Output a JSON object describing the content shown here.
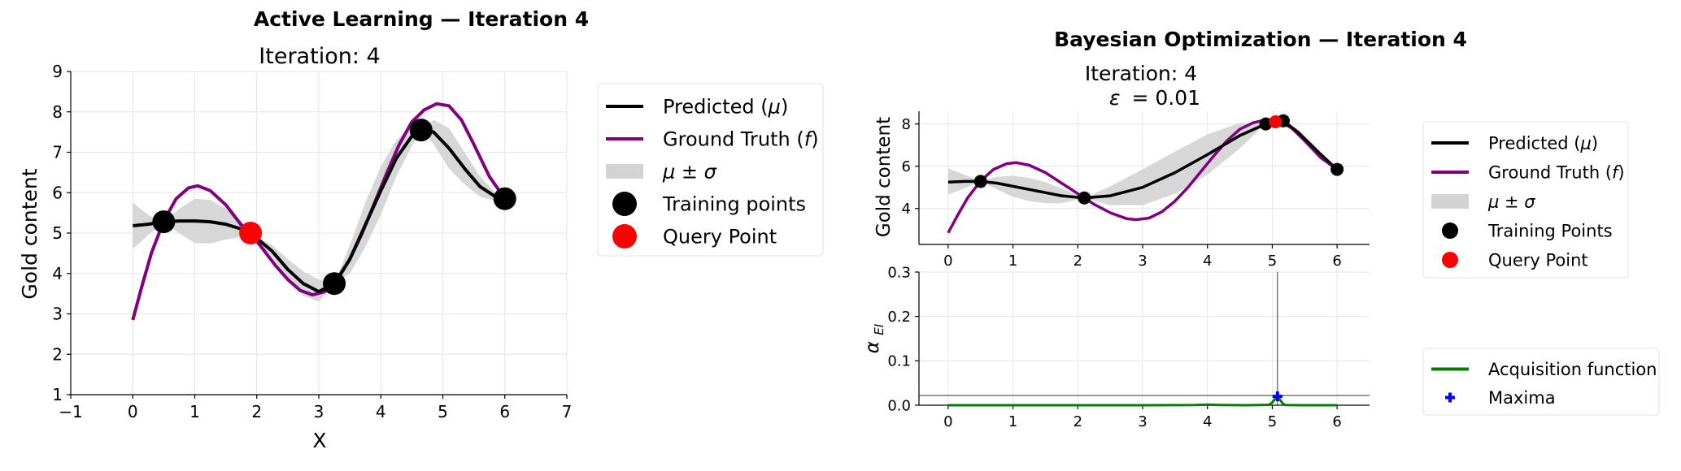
{
  "active_learning": {
    "suptitle": "Active Learning — Iteration 4",
    "suptitle_color": "#9b27b0",
    "title": "Iteration: 4"
  },
  "bayes_opt": {
    "suptitle": "Bayesian Optimization — Iteration 4",
    "suptitle_color": "#4caf50",
    "title_line1": "Iteration: 4",
    "title_line2_symbol": "ε",
    "title_line2_value": "= 0.01"
  },
  "chart_data": [
    {
      "type": "line",
      "title": "Iteration: 4",
      "xlabel": "X",
      "ylabel": "Gold content",
      "xlim": [
        -1,
        7
      ],
      "ylim": [
        1,
        9
      ],
      "xticks": [
        -1,
        0,
        1,
        2,
        3,
        4,
        5,
        6,
        7
      ],
      "yticks": [
        1,
        2,
        3,
        4,
        5,
        6,
        7,
        8,
        9
      ],
      "grid": true,
      "legend_position": "right",
      "legend": [
        {
          "symbol": "line",
          "color": "#000000",
          "text": "Predicted (",
          "math": "μ",
          "tail": ")"
        },
        {
          "symbol": "line",
          "color": "#800080",
          "text": "Ground Truth (",
          "math": "f",
          "tail": ")"
        },
        {
          "symbol": "band",
          "color": "#d3d3d3",
          "text": "",
          "math": "μ ± σ",
          "tail": ""
        },
        {
          "symbol": "dot",
          "color": "#000000",
          "text": "Training points",
          "math": "",
          "tail": ""
        },
        {
          "symbol": "dot",
          "color": "#ff0000",
          "text": "Query Point",
          "math": "",
          "tail": ""
        }
      ],
      "series": [
        {
          "role": "predicted",
          "color": "#000000",
          "x": [
            0,
            0.25,
            0.5,
            0.75,
            1.0,
            1.25,
            1.5,
            1.75,
            1.9,
            2.25,
            2.5,
            2.75,
            3.0,
            3.25,
            3.5,
            3.75,
            4.0,
            4.25,
            4.5,
            4.65,
            4.85,
            5.1,
            5.35,
            5.6,
            5.85,
            6.0
          ],
          "y": [
            5.18,
            5.22,
            5.28,
            5.3,
            5.3,
            5.28,
            5.22,
            5.1,
            5.0,
            4.55,
            4.1,
            3.75,
            3.55,
            3.75,
            4.35,
            5.2,
            6.05,
            6.85,
            7.4,
            7.55,
            7.5,
            7.1,
            6.6,
            6.15,
            5.9,
            5.85
          ]
        },
        {
          "role": "ground_truth",
          "color": "#800080",
          "x": [
            0,
            0.15,
            0.3,
            0.5,
            0.7,
            0.9,
            1.05,
            1.25,
            1.5,
            1.75,
            1.9,
            2.1,
            2.3,
            2.5,
            2.7,
            2.9,
            3.1,
            3.3,
            3.5,
            3.7,
            3.9,
            4.1,
            4.3,
            4.5,
            4.7,
            4.9,
            5.1,
            5.3,
            5.5,
            5.75,
            6.0
          ],
          "y": [
            2.85,
            3.7,
            4.5,
            5.3,
            5.85,
            6.12,
            6.17,
            6.05,
            5.7,
            5.2,
            5.0,
            4.6,
            4.2,
            3.85,
            3.58,
            3.47,
            3.55,
            3.85,
            4.35,
            5.0,
            5.75,
            6.5,
            7.2,
            7.75,
            8.05,
            8.2,
            8.15,
            7.8,
            7.2,
            6.4,
            5.85
          ]
        },
        {
          "role": "uncertainty_band",
          "color": "#d3d3d3",
          "x": [
            0,
            0.25,
            0.5,
            0.75,
            1.0,
            1.25,
            1.5,
            1.75,
            1.9,
            2.25,
            2.5,
            2.75,
            3.0,
            3.25,
            3.5,
            3.75,
            4.0,
            4.25,
            4.5,
            4.65,
            4.85,
            5.1,
            5.35,
            5.6,
            5.85,
            6.0
          ],
          "upper": [
            5.75,
            5.45,
            5.28,
            5.6,
            5.85,
            5.82,
            5.6,
            5.3,
            5.0,
            4.7,
            4.35,
            4.05,
            3.85,
            3.75,
            4.7,
            5.75,
            6.65,
            7.3,
            7.65,
            7.55,
            7.8,
            7.6,
            7.0,
            6.4,
            6.0,
            5.85
          ],
          "lower": [
            4.6,
            4.95,
            5.28,
            5.0,
            4.75,
            4.74,
            4.84,
            4.9,
            5.0,
            4.4,
            3.85,
            3.45,
            3.3,
            3.75,
            4.0,
            4.65,
            5.45,
            6.4,
            7.15,
            7.55,
            7.2,
            6.6,
            6.2,
            5.9,
            5.8,
            5.85
          ]
        },
        {
          "role": "training_points",
          "color": "#000000",
          "points": [
            [
              0.5,
              5.28
            ],
            [
              3.25,
              3.75
            ],
            [
              4.65,
              7.55
            ],
            [
              6.0,
              5.85
            ]
          ]
        },
        {
          "role": "query_point",
          "color": "#ff0000",
          "points": [
            [
              1.9,
              5.0
            ]
          ]
        }
      ]
    },
    {
      "type": "line",
      "title": "Iteration: 4",
      "xlabel": "",
      "ylabel": "Gold content",
      "xlim": [
        -0.45,
        6.5
      ],
      "ylim": [
        2.3,
        8.6
      ],
      "xticks": [
        0,
        1,
        2,
        3,
        4,
        5,
        6
      ],
      "yticks": [
        4,
        6,
        8
      ],
      "grid": true,
      "legend_position": "right",
      "legend": [
        {
          "symbol": "line",
          "color": "#000000",
          "text": "Predicted (",
          "math": "μ",
          "tail": ")"
        },
        {
          "symbol": "line",
          "color": "#800080",
          "text": "Ground Truth (",
          "math": "f",
          "tail": ")"
        },
        {
          "symbol": "band",
          "color": "#d3d3d3",
          "text": "",
          "math": "μ ± σ",
          "tail": ""
        },
        {
          "symbol": "dot",
          "color": "#000000",
          "text": "Training Points",
          "math": "",
          "tail": ""
        },
        {
          "symbol": "dot",
          "color": "#ff0000",
          "text": "Query Point",
          "math": "",
          "tail": ""
        }
      ],
      "series": [
        {
          "role": "predicted",
          "color": "#000000",
          "x": [
            0,
            0.25,
            0.5,
            0.75,
            1.0,
            1.25,
            1.5,
            1.75,
            2.1,
            2.5,
            3.0,
            3.5,
            4.0,
            4.5,
            4.9,
            5.1,
            5.17,
            5.4,
            5.7,
            6.0
          ],
          "y": [
            5.25,
            5.28,
            5.28,
            5.2,
            5.05,
            4.9,
            4.75,
            4.6,
            4.5,
            4.6,
            5.0,
            5.7,
            6.55,
            7.45,
            8.0,
            8.15,
            8.15,
            7.6,
            6.7,
            5.85
          ]
        },
        {
          "role": "ground_truth",
          "color": "#800080",
          "x": [
            0,
            0.15,
            0.3,
            0.5,
            0.7,
            0.9,
            1.05,
            1.25,
            1.5,
            1.75,
            2.0,
            2.25,
            2.5,
            2.75,
            2.9,
            3.1,
            3.3,
            3.5,
            3.7,
            3.9,
            4.1,
            4.3,
            4.5,
            4.7,
            4.9,
            5.1,
            5.3,
            5.5,
            5.75,
            6.0
          ],
          "y": [
            2.85,
            3.7,
            4.5,
            5.3,
            5.85,
            6.12,
            6.17,
            6.05,
            5.7,
            5.2,
            4.7,
            4.2,
            3.8,
            3.52,
            3.47,
            3.55,
            3.85,
            4.35,
            5.0,
            5.75,
            6.5,
            7.2,
            7.75,
            8.05,
            8.2,
            8.15,
            7.8,
            7.2,
            6.4,
            5.85
          ]
        },
        {
          "role": "uncertainty_band",
          "color": "#d3d3d3",
          "x": [
            0,
            0.25,
            0.5,
            0.75,
            1.0,
            1.25,
            1.5,
            1.75,
            2.1,
            2.5,
            3.0,
            3.5,
            4.0,
            4.5,
            4.9,
            5.1,
            5.17,
            5.4,
            5.7,
            6.0
          ],
          "upper": [
            5.9,
            5.6,
            5.28,
            5.5,
            5.55,
            5.45,
            5.25,
            4.95,
            4.5,
            5.05,
            5.85,
            6.7,
            7.5,
            8.05,
            8.0,
            8.15,
            8.15,
            7.75,
            6.85,
            5.85
          ],
          "lower": [
            4.65,
            4.95,
            5.28,
            4.9,
            4.55,
            4.35,
            4.25,
            4.25,
            4.5,
            4.15,
            4.15,
            4.7,
            5.6,
            6.85,
            8.0,
            8.15,
            8.15,
            7.45,
            6.55,
            5.85
          ]
        },
        {
          "role": "training_points",
          "color": "#000000",
          "points": [
            [
              0.5,
              5.28
            ],
            [
              2.1,
              4.5
            ],
            [
              4.9,
              8.0
            ],
            [
              5.17,
              8.15
            ],
            [
              6.0,
              5.85
            ]
          ]
        },
        {
          "role": "query_point",
          "color": "#ff0000",
          "points": [
            [
              5.05,
              8.1
            ]
          ]
        }
      ]
    },
    {
      "type": "line",
      "title": "",
      "xlabel": "",
      "ylabel_symbol": "α",
      "ylabel_sub": "EI",
      "xlim": [
        -0.45,
        6.5
      ],
      "ylim": [
        0,
        0.3
      ],
      "xticks": [
        0,
        1,
        2,
        3,
        4,
        5,
        6
      ],
      "ytick_labels": [
        "0.0",
        "0.1",
        "0.2",
        "0.3"
      ],
      "yticks": [
        0,
        0.1,
        0.2,
        0.3
      ],
      "grid": true,
      "legend_position": "right",
      "legend": [
        {
          "symbol": "line",
          "color": "#008000",
          "text": "Acquisition function",
          "math": "",
          "tail": ""
        },
        {
          "symbol": "plus",
          "color": "#0000ff",
          "text": "Maxima",
          "math": "",
          "tail": ""
        }
      ],
      "crosshair": {
        "x": 5.08,
        "y": 0.022
      },
      "series": [
        {
          "role": "acquisition",
          "color": "#008000",
          "x": [
            0,
            1,
            2,
            3,
            3.8,
            4.0,
            4.2,
            4.6,
            4.95,
            5.0,
            5.05,
            5.08,
            5.11,
            5.16,
            5.2,
            5.5,
            6.0
          ],
          "y": [
            0,
            0,
            0,
            0,
            0.0005,
            0.0015,
            0.0005,
            0,
            0.001,
            0.006,
            0.016,
            0.02,
            0.014,
            0.004,
            0.0005,
            0,
            0
          ]
        },
        {
          "role": "maxima",
          "color": "#0000ff",
          "points": [
            [
              5.08,
              0.02
            ]
          ]
        }
      ]
    }
  ]
}
